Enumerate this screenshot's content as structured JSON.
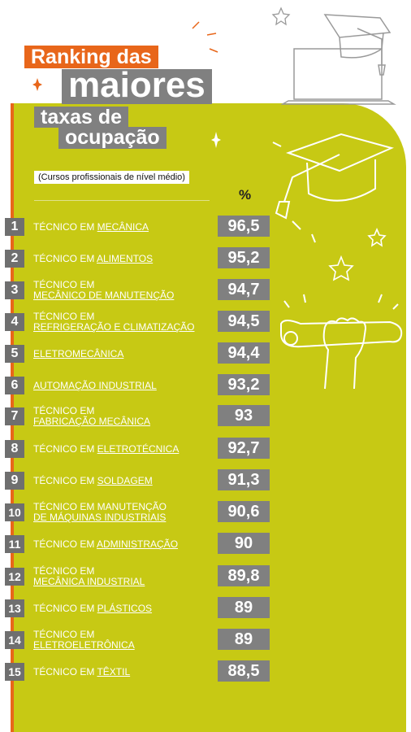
{
  "header": {
    "line1": "Ranking das",
    "line2": "maiores",
    "line3": "taxas de",
    "line4": "ocupação",
    "subtitle": "(Cursos profissionais de nível médio)",
    "unit": "%"
  },
  "colors": {
    "panel": "#c7c914",
    "accent": "#e8661a",
    "box": "#808080"
  },
  "chart_data": {
    "type": "table",
    "title": "Ranking das maiores taxas de ocupação",
    "subtitle": "(Cursos profissionais de nível médio)",
    "unit": "%",
    "rows": [
      {
        "rank": "1",
        "prefix": "TÉCNICO EM ",
        "name": "MECÂNICA",
        "value": "96,5",
        "two_line": false
      },
      {
        "rank": "2",
        "prefix": "TÉCNICO EM ",
        "name": "ALIMENTOS",
        "value": "95,2",
        "two_line": false
      },
      {
        "rank": "3",
        "prefix": "TÉCNICO EM",
        "name": "MECÂNICO DE MANUTENÇÃO",
        "value": "94,7",
        "two_line": true
      },
      {
        "rank": "4",
        "prefix": "TÉCNICO EM",
        "name": "REFRIGERAÇÃO E CLIMATIZAÇÃO",
        "value": "94,5",
        "two_line": true
      },
      {
        "rank": "5",
        "prefix": "",
        "name": "ELETROMECÂNICA",
        "value": "94,4",
        "two_line": false
      },
      {
        "rank": "6",
        "prefix": "",
        "name": "AUTOMAÇÃO INDUSTRIAL",
        "value": "93,2",
        "two_line": false
      },
      {
        "rank": "7",
        "prefix": "TÉCNICO EM",
        "name": "FABRICAÇÃO MECÂNICA",
        "value": "93",
        "two_line": true
      },
      {
        "rank": "8",
        "prefix": "TÉCNICO EM ",
        "name": "ELETROTÉCNICA",
        "value": "92,7",
        "two_line": false
      },
      {
        "rank": "9",
        "prefix": "TÉCNICO EM ",
        "name": "SOLDAGEM",
        "value": "91,3",
        "two_line": false
      },
      {
        "rank": "10",
        "prefix": "TÉCNICO EM MANUTENÇÃO",
        "name": "DE MÁQUINAS INDUSTRIAIS",
        "value": "90,6",
        "two_line": true
      },
      {
        "rank": "11",
        "prefix": "TÉCNICO EM ",
        "name": "ADMINISTRAÇÃO",
        "value": "90",
        "two_line": false
      },
      {
        "rank": "12",
        "prefix": "TÉCNICO EM",
        "name": "MECÂNICA INDUSTRIAL",
        "value": "89,8",
        "two_line": true
      },
      {
        "rank": "13",
        "prefix": "TÉCNICO EM ",
        "name": "PLÁSTICOS",
        "value": "89",
        "two_line": false
      },
      {
        "rank": "14",
        "prefix": "TÉCNICO EM",
        "name": "ELETROELETRÔNICA",
        "value": "89",
        "two_line": true
      },
      {
        "rank": "15",
        "prefix": "TÉCNICO EM ",
        "name": "TÊXTIL",
        "value": "88,5",
        "two_line": false
      }
    ]
  }
}
